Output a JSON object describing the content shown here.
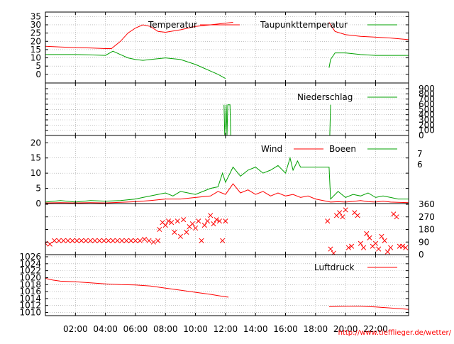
{
  "footer_url": "http://www.tiefflieger.de/wetter/",
  "time_axis": {
    "tick_labels": [
      "02:00",
      "04:00",
      "06:00",
      "08:00",
      "10:00",
      "12:00",
      "14:00",
      "16:00",
      "18:00",
      "20:00",
      "22:00"
    ],
    "tick_hours": [
      2,
      4,
      6,
      8,
      10,
      12,
      14,
      16,
      18,
      20,
      22
    ],
    "xlim": [
      0,
      24.2
    ]
  },
  "colors": {
    "red": "#ff0000",
    "green": "#00a000",
    "grid": "#a0a0a0"
  },
  "chart_data": [
    {
      "type": "line",
      "panel": "temperature",
      "x_unit": "hour",
      "ylim": [
        -3.5,
        36
      ],
      "yticks": [
        0,
        5,
        10,
        15,
        20,
        25,
        30,
        35
      ],
      "series": [
        {
          "name": "Temperatur",
          "color": "red",
          "x": [
            0,
            1,
            2,
            3,
            4,
            4.4,
            5,
            5.5,
            6,
            6.5,
            7,
            7.5,
            8,
            9,
            10,
            11,
            12,
            12.5,
            18.9,
            19,
            19.3,
            20,
            21,
            22,
            23,
            24.2
          ],
          "y": [
            17,
            16.6,
            16.2,
            16,
            15.6,
            15.6,
            20,
            25,
            28,
            30,
            29,
            26,
            25.5,
            27,
            29,
            30,
            31,
            31.5,
            31.5,
            30,
            26,
            24,
            23,
            22.5,
            22,
            21
          ]
        },
        {
          "name": "Taupunkttemperatur",
          "color": "green",
          "x": [
            0,
            1,
            2,
            3,
            4,
            4.5,
            5,
            5.5,
            6,
            6.5,
            7,
            7.5,
            8,
            9,
            10,
            10.5,
            11,
            11.5,
            12,
            18.9,
            19,
            19.3,
            20,
            21,
            22,
            23,
            24.2
          ],
          "y": [
            12,
            12,
            12,
            11.8,
            11.5,
            14,
            12,
            10,
            9,
            8.5,
            9,
            9.5,
            10,
            9,
            6,
            4,
            2,
            0,
            -2.5,
            4,
            9,
            13,
            13,
            12,
            11.5,
            11.5,
            11.5
          ]
        }
      ]
    },
    {
      "type": "line",
      "panel": "precipitation",
      "x_unit": "hour",
      "ylim": [
        0,
        900
      ],
      "yticks": [
        0,
        100,
        200,
        300,
        400,
        500,
        600,
        700,
        800,
        900
      ],
      "series": [
        {
          "name": "Niederschlag",
          "color": "green",
          "x": [
            0,
            11.9,
            11.95,
            12.05,
            12.1,
            12.15,
            12.3,
            12.35,
            12.4,
            18.95,
            19.0,
            24.2
          ],
          "y": [
            590,
            590,
            0,
            590,
            0,
            590,
            590,
            0,
            0,
            0,
            590,
            590
          ]
        }
      ]
    },
    {
      "type": "line",
      "panel": "wind",
      "x_unit": "hour",
      "ylim": [
        0,
        21
      ],
      "yticks": [
        0,
        5,
        10,
        15,
        20
      ],
      "right_labels": [
        "7",
        "6"
      ],
      "series": [
        {
          "name": "Wind",
          "color": "red",
          "x": [
            0,
            1,
            2,
            3,
            4,
            5,
            6,
            7,
            8,
            9,
            10,
            11,
            11.5,
            12,
            12.5,
            13,
            13.5,
            14,
            14.5,
            15,
            15.5,
            16,
            16.5,
            17,
            17.5,
            18,
            18.5,
            19,
            19.5,
            20,
            20.5,
            21,
            21.5,
            22,
            22.5,
            23,
            23.5,
            24.2
          ],
          "y": [
            0.2,
            0.3,
            0.2,
            0.3,
            0.2,
            0.4,
            0.6,
            1,
            1.5,
            1.5,
            2,
            2.5,
            4,
            3,
            6.5,
            3.5,
            4.5,
            3,
            4,
            2.5,
            3.5,
            2.5,
            3,
            2,
            2.5,
            1.5,
            1,
            0.5,
            0.6,
            0.5,
            0.7,
            1,
            0.6,
            0.5,
            0.8,
            0.5,
            0.4,
            0.3
          ]
        },
        {
          "name": "Boeen",
          "color": "green",
          "x": [
            0,
            1,
            2,
            3,
            4,
            5,
            6,
            6.5,
            7,
            7.5,
            8,
            8.5,
            9,
            9.5,
            10,
            10.5,
            11,
            11.5,
            11.8,
            12,
            12.5,
            13,
            13.5,
            14,
            14.5,
            15,
            15.5,
            16,
            16.3,
            16.5,
            16.8,
            17,
            17.5,
            18,
            18.9,
            19,
            19.5,
            20,
            20.5,
            21,
            21.5,
            22,
            22.5,
            23,
            23.5,
            24.2
          ],
          "y": [
            0.5,
            1,
            0.5,
            1,
            0.8,
            1,
            1.5,
            2,
            2.5,
            3,
            3.5,
            2.5,
            4,
            3.5,
            3,
            4,
            5,
            5.5,
            10,
            7,
            12,
            9,
            11,
            12,
            10,
            11,
            12.5,
            10,
            15,
            11,
            14,
            12,
            12,
            12,
            12,
            1.5,
            4,
            2,
            3,
            2.5,
            3.5,
            2,
            2.5,
            2,
            1.5,
            1.5
          ]
        }
      ]
    },
    {
      "type": "scatter",
      "panel": "wind_direction",
      "x_unit": "hour",
      "ylim": [
        0,
        360
      ],
      "yticks": [
        0,
        90,
        180,
        270,
        360
      ],
      "series": [
        {
          "name": "",
          "color": "red",
          "marker": "x",
          "x": [
            0,
            0.3,
            0.6,
            0.9,
            1.2,
            1.5,
            1.8,
            2.1,
            2.4,
            2.7,
            3.0,
            3.3,
            3.6,
            3.9,
            4.2,
            4.5,
            4.8,
            5.1,
            5.4,
            5.7,
            6.0,
            6.3,
            6.6,
            6.9,
            7.2,
            7.5,
            7.6,
            7.8,
            8.0,
            8.2,
            8.4,
            8.6,
            8.8,
            9.0,
            9.2,
            9.4,
            9.6,
            9.8,
            10.0,
            10.2,
            10.4,
            10.6,
            10.8,
            11.0,
            11.2,
            11.4,
            11.6,
            11.8,
            12.0,
            18.8,
            19.0,
            19.2,
            19.4,
            19.6,
            19.8,
            20.0,
            20.2,
            20.4,
            20.6,
            20.8,
            21.0,
            21.2,
            21.4,
            21.6,
            21.8,
            22.0,
            22.2,
            22.4,
            22.6,
            22.8,
            23.0,
            23.2,
            23.4,
            23.6,
            23.8,
            24.0
          ],
          "y": [
            80,
            75,
            100,
            100,
            100,
            100,
            100,
            100,
            100,
            100,
            100,
            100,
            100,
            100,
            100,
            100,
            100,
            100,
            100,
            100,
            100,
            100,
            110,
            100,
            90,
            100,
            180,
            230,
            210,
            240,
            230,
            160,
            240,
            130,
            250,
            160,
            200,
            220,
            190,
            240,
            100,
            210,
            240,
            280,
            220,
            250,
            240,
            100,
            240,
            240,
            40,
            10,
            280,
            300,
            270,
            320,
            50,
            60,
            300,
            280,
            80,
            50,
            150,
            120,
            60,
            80,
            40,
            130,
            100,
            20,
            50,
            290,
            270,
            60,
            60,
            50
          ]
        }
      ]
    },
    {
      "type": "line",
      "panel": "pressure",
      "x_unit": "hour",
      "ylim": [
        1009.5,
        1026
      ],
      "yticks": [
        1010,
        1012,
        1014,
        1016,
        1018,
        1020,
        1022,
        1024,
        1026
      ],
      "series": [
        {
          "name": "Luftdruck",
          "color": "red",
          "x": [
            0,
            0.5,
            1,
            2,
            3,
            4,
            5,
            6,
            7,
            8,
            9,
            10,
            11,
            12,
            12.2,
            18.9,
            19,
            20,
            21,
            22,
            23,
            24.2
          ],
          "y": [
            1019.8,
            1019.3,
            1019.0,
            1018.8,
            1018.5,
            1018.2,
            1018.0,
            1017.9,
            1017.6,
            1017.0,
            1016.4,
            1015.8,
            1015.2,
            1014.5,
            1014.4,
            1011.6,
            1011.7,
            1011.8,
            1011.8,
            1011.6,
            1011.3,
            1010.9
          ]
        }
      ]
    }
  ]
}
